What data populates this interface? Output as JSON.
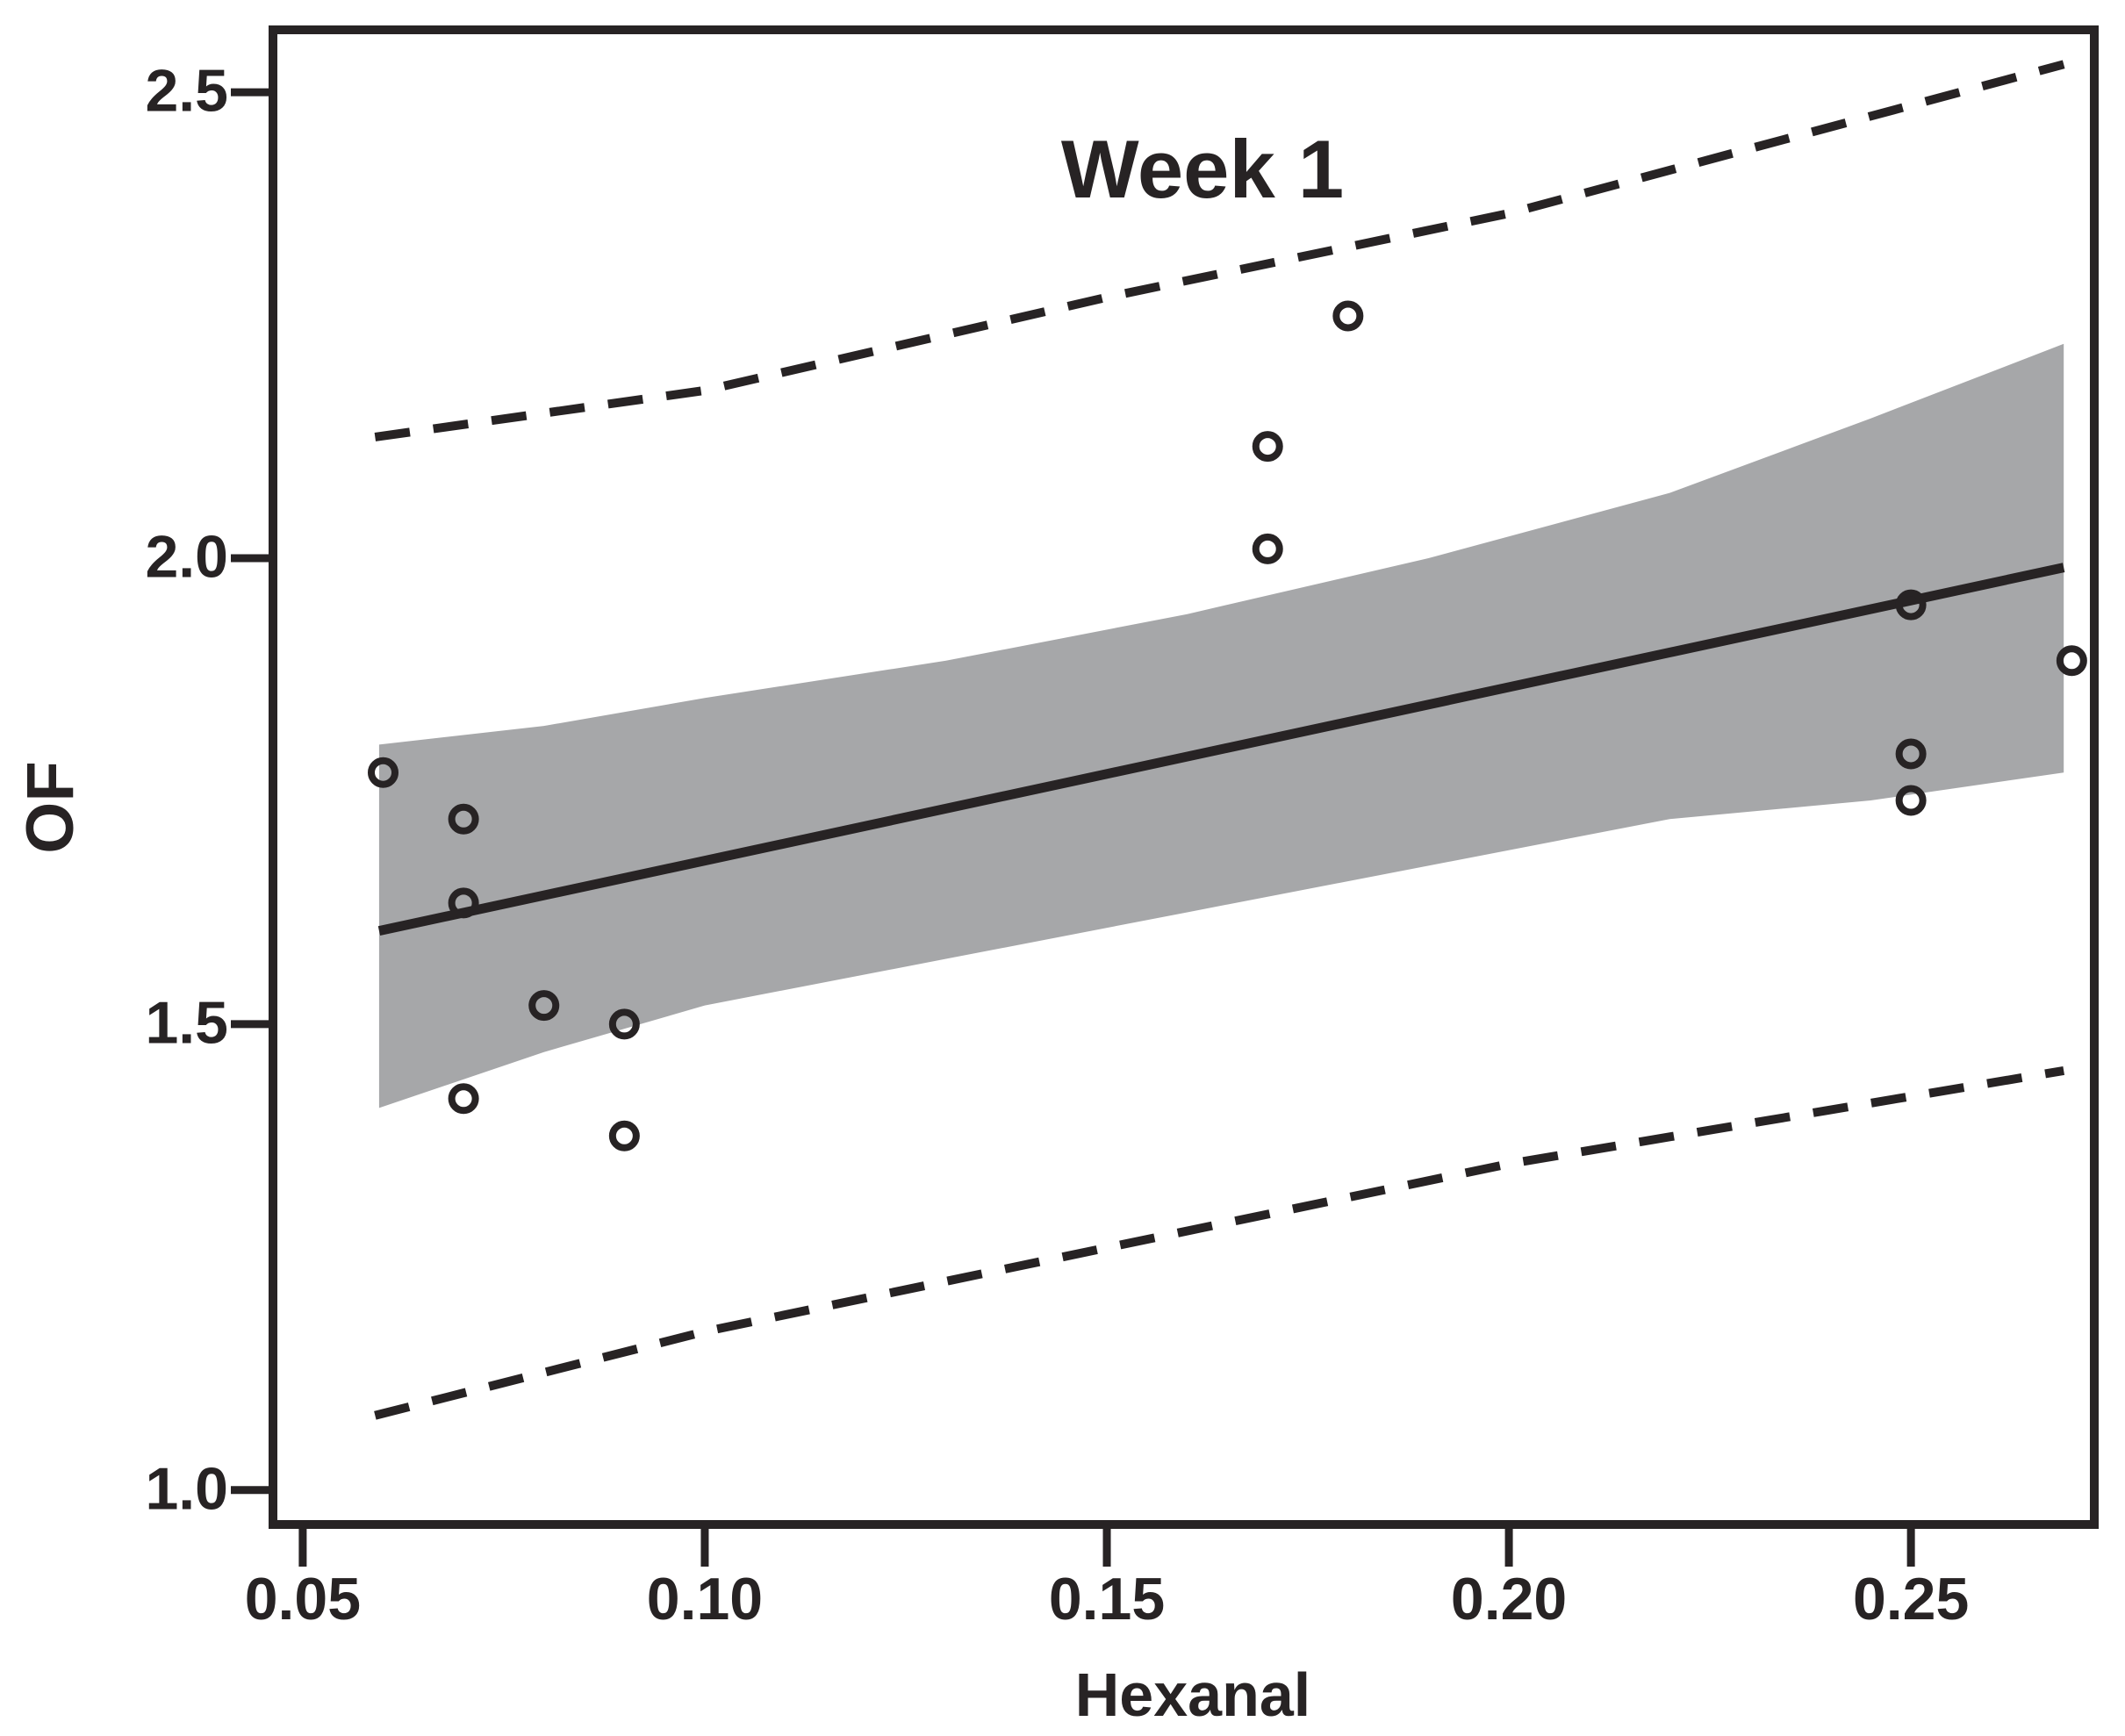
{
  "colors": {
    "ink": "#272324",
    "band": "#a6a7a9",
    "background": "#ffffff"
  },
  "chart_data": {
    "type": "scatter",
    "title": "Week 1",
    "xlabel": "Hexanal",
    "ylabel": "OF",
    "xlim": [
      0.0463,
      0.2728
    ],
    "ylim": [
      0.963,
      2.567
    ],
    "grid": false,
    "legend": null,
    "x_ticks": [
      {
        "v": 0.05,
        "label": "0.05"
      },
      {
        "v": 0.1,
        "label": "0.10"
      },
      {
        "v": 0.15,
        "label": "0.15"
      },
      {
        "v": 0.2,
        "label": "0.20"
      },
      {
        "v": 0.25,
        "label": "0.25"
      }
    ],
    "y_ticks": [
      {
        "v": 1.0,
        "label": "1.0"
      },
      {
        "v": 1.5,
        "label": "1.5"
      },
      {
        "v": 2.0,
        "label": "2.0"
      },
      {
        "v": 2.5,
        "label": "2.5"
      }
    ],
    "points": [
      [
        0.06,
        1.77
      ],
      [
        0.07,
        1.72
      ],
      [
        0.07,
        1.63
      ],
      [
        0.07,
        1.42
      ],
      [
        0.08,
        1.52
      ],
      [
        0.09,
        1.5
      ],
      [
        0.09,
        1.38
      ],
      [
        0.17,
        2.12
      ],
      [
        0.17,
        2.01
      ],
      [
        0.18,
        2.26
      ],
      [
        0.25,
        1.95
      ],
      [
        0.25,
        1.79
      ],
      [
        0.25,
        1.74
      ],
      [
        0.27,
        1.89
      ]
    ],
    "regression_line": {
      "x": [
        0.0595,
        0.269
      ],
      "y": [
        1.6,
        1.99
      ]
    },
    "confidence_band": {
      "x": [
        0.0595,
        0.08,
        0.1,
        0.13,
        0.16,
        0.19,
        0.22,
        0.245,
        0.269
      ],
      "upper": [
        1.8,
        1.82,
        1.85,
        1.89,
        1.94,
        2.0,
        2.07,
        2.15,
        2.23
      ],
      "lower": [
        1.41,
        1.47,
        1.52,
        1.57,
        1.62,
        1.67,
        1.72,
        1.74,
        1.77
      ]
    },
    "prediction_band": {
      "x": [
        0.059,
        0.1,
        0.15,
        0.2,
        0.269
      ],
      "upper": [
        2.13,
        2.18,
        2.28,
        2.37,
        2.53
      ],
      "lower": [
        1.08,
        1.17,
        1.26,
        1.35,
        1.45
      ]
    }
  }
}
